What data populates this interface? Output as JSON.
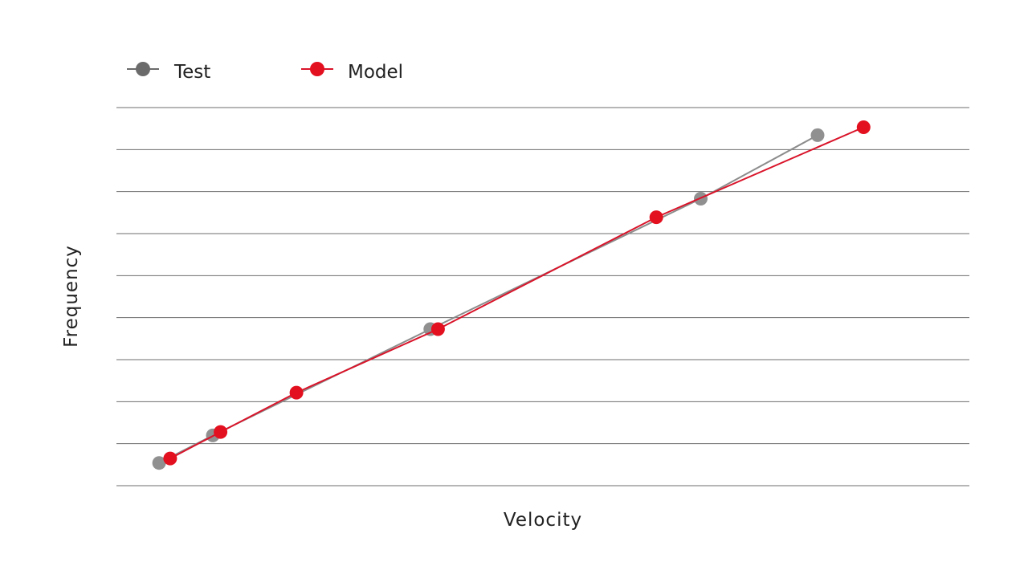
{
  "chart_data": {
    "type": "line",
    "title": "",
    "xlabel": "Velocity",
    "ylabel": "Frequency",
    "xlim": [
      0,
      1
    ],
    "ylim": [
      0,
      1
    ],
    "grid": true,
    "legend_position": "top-left",
    "series": [
      {
        "name": "Test",
        "color": "#8c8c8c",
        "marker_color": "#909090",
        "legend_marker_color": "#6b6b6b",
        "x": [
          0.05,
          0.113,
          0.368,
          0.685,
          0.822
        ],
        "y": [
          0.06,
          0.133,
          0.414,
          0.759,
          0.927
        ]
      },
      {
        "name": "Model",
        "color": "#d9142a",
        "marker_color": "#e3101f",
        "legend_marker_color": "#e3101f",
        "x": [
          0.063,
          0.122,
          0.211,
          0.377,
          0.633,
          0.876
        ],
        "y": [
          0.072,
          0.142,
          0.246,
          0.414,
          0.71,
          0.948
        ]
      }
    ],
    "gridline_color": "#6e6e6e"
  }
}
